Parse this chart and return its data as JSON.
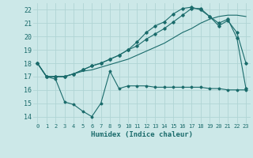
{
  "title": "",
  "xlabel": "Humidex (Indice chaleur)",
  "bg_color": "#cce8e8",
  "grid_color": "#b0d4d4",
  "line_color": "#1a6b6b",
  "xlim": [
    -0.5,
    23.5
  ],
  "ylim": [
    13.5,
    22.5
  ],
  "yticks": [
    14,
    15,
    16,
    17,
    18,
    19,
    20,
    21,
    22
  ],
  "xticks": [
    0,
    1,
    2,
    3,
    4,
    5,
    6,
    7,
    8,
    9,
    10,
    11,
    12,
    13,
    14,
    15,
    16,
    17,
    18,
    19,
    20,
    21,
    22,
    23
  ],
  "line1_x": [
    0,
    1,
    2,
    3,
    4,
    5,
    6,
    7,
    8,
    9,
    10,
    11,
    12,
    13,
    14,
    15,
    16,
    17,
    18,
    19,
    20,
    21,
    22,
    23
  ],
  "line1_y": [
    18.0,
    17.0,
    16.8,
    15.1,
    14.9,
    14.4,
    14.0,
    15.0,
    17.4,
    16.1,
    16.3,
    16.3,
    16.3,
    16.2,
    16.2,
    16.2,
    16.2,
    16.2,
    16.2,
    16.1,
    16.1,
    16.0,
    16.0,
    16.0
  ],
  "line2_x": [
    0,
    1,
    2,
    3,
    4,
    5,
    6,
    7,
    8,
    9,
    10,
    11,
    12,
    13,
    14,
    15,
    16,
    17,
    18,
    19,
    20,
    21,
    22,
    23
  ],
  "line2_y": [
    18.0,
    17.0,
    17.0,
    17.0,
    17.2,
    17.4,
    17.5,
    17.7,
    17.9,
    18.1,
    18.3,
    18.6,
    18.9,
    19.2,
    19.5,
    19.9,
    20.3,
    20.6,
    21.0,
    21.3,
    21.5,
    21.6,
    21.6,
    21.5
  ],
  "line3_x": [
    0,
    1,
    2,
    3,
    4,
    5,
    6,
    7,
    8,
    9,
    10,
    11,
    12,
    13,
    14,
    15,
    16,
    17,
    18,
    19,
    20,
    21,
    22,
    23
  ],
  "line3_y": [
    18.0,
    17.0,
    17.0,
    17.0,
    17.2,
    17.5,
    17.8,
    18.0,
    18.3,
    18.6,
    19.0,
    19.6,
    20.3,
    20.8,
    21.1,
    21.7,
    22.1,
    22.2,
    22.0,
    21.5,
    20.8,
    21.2,
    20.3,
    18.0
  ],
  "line4_x": [
    0,
    1,
    2,
    3,
    4,
    5,
    6,
    7,
    8,
    9,
    10,
    11,
    12,
    13,
    14,
    15,
    16,
    17,
    18,
    19,
    20,
    21,
    22,
    23
  ],
  "line4_y": [
    18.0,
    17.0,
    17.0,
    17.0,
    17.2,
    17.5,
    17.8,
    18.0,
    18.3,
    18.6,
    19.0,
    19.3,
    19.8,
    20.2,
    20.6,
    21.1,
    21.6,
    22.1,
    22.1,
    21.5,
    21.0,
    21.3,
    19.9,
    16.1
  ]
}
